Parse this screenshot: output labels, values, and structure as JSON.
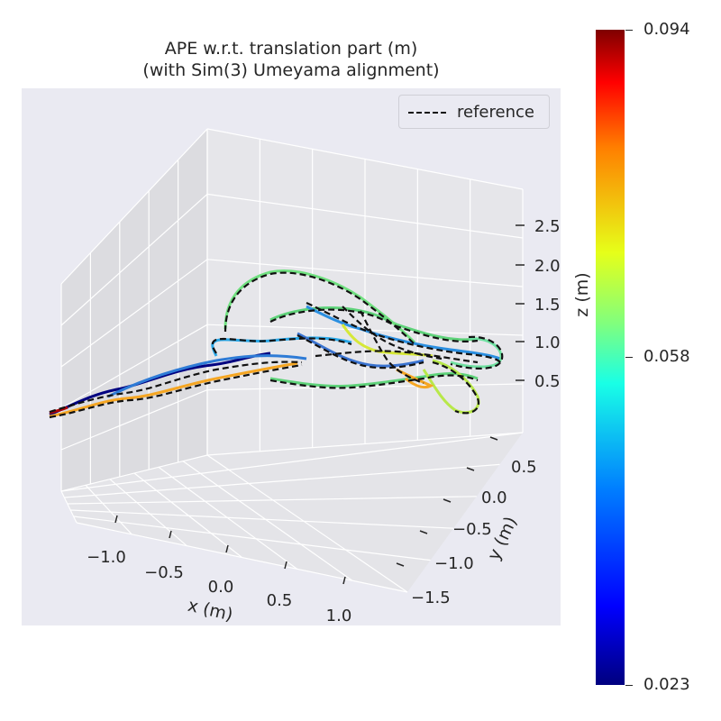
{
  "title_line1": "APE w.r.t. translation part (m)",
  "title_line2": "(with Sim(3) Umeyama alignment)",
  "legend_label": "reference",
  "chart_data": {
    "type": "line3d",
    "title": "APE w.r.t. translation part (m)\n(with Sim(3) Umeyama alignment)",
    "xlabel": "x (m)",
    "ylabel": "y (m)",
    "zlabel": "z (m)",
    "xticks": [
      "−1.0",
      "−0.5",
      "0.0",
      "0.5",
      "1.0"
    ],
    "yticks": [
      "0.5",
      "0.0",
      "−0.5",
      "−1.0",
      "−1.5"
    ],
    "zticks": [
      "2.5",
      "2.0",
      "1.5",
      "1.0",
      "0.5"
    ],
    "series": [
      {
        "name": "reference",
        "style": "dashed",
        "color": "#000000"
      }
    ],
    "colorbar": {
      "colormap": "jet",
      "ticks": [
        "0.094",
        "0.058",
        "0.023"
      ],
      "range": [
        0.023,
        0.094
      ]
    },
    "legend_position": "top-right",
    "grid": true
  }
}
